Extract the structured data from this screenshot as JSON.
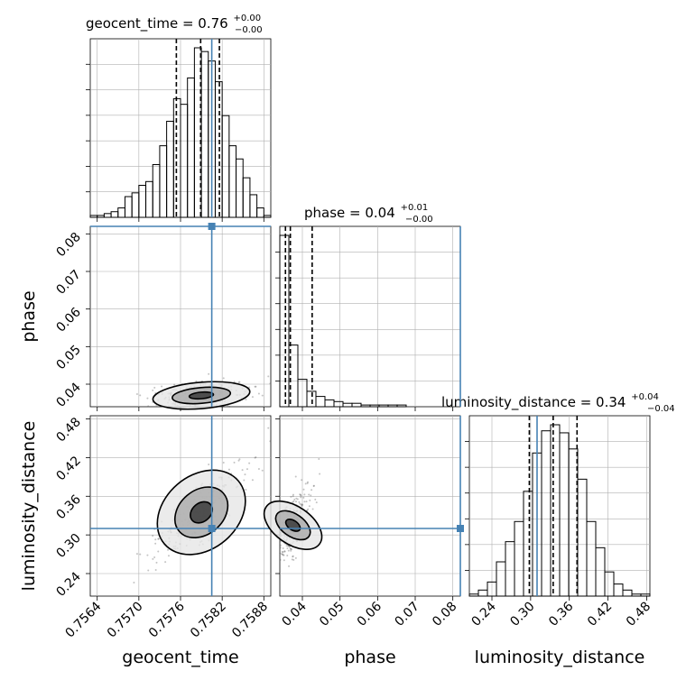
{
  "colors": {
    "truth": "#4682b4",
    "hist": "#000000",
    "grid": "#b0b0b0",
    "scatter": "#555555"
  },
  "titles": {
    "geocent_time": {
      "main": "geocent_time = 0.76",
      "sup": "+0.00",
      "sub": "−0.00"
    },
    "phase": {
      "main": "phase = 0.04",
      "sup": "+0.01",
      "sub": "−0.00"
    },
    "luminosity_distance": {
      "main": "luminosity_distance = 0.34",
      "sup": "+0.04",
      "sub": "−0.04"
    }
  },
  "chart_data": {
    "type": "corner",
    "parameters": [
      "geocent_time",
      "phase",
      "luminosity_distance"
    ],
    "axis_labels": [
      "geocent_time",
      "phase",
      "luminosity_distance"
    ],
    "truth": {
      "geocent_time": 0.75805,
      "phase": 0.082,
      "luminosity_distance": 0.31
    },
    "ranges": {
      "geocent_time": [
        0.7563,
        0.7589
      ],
      "phase": [
        0.034,
        0.082
      ],
      "luminosity_distance": [
        0.205,
        0.485
      ]
    },
    "ticks": {
      "geocent_time": [
        "0.7564",
        "0.7570",
        "0.7576",
        "0.7582",
        "0.7588"
      ],
      "phase": [
        "0.04",
        "0.05",
        "0.06",
        "0.07",
        "0.08"
      ],
      "luminosity_distance": [
        "0.24",
        "0.30",
        "0.36",
        "0.42",
        "0.48"
      ]
    },
    "quantiles": {
      "geocent_time": [
        0.75754,
        0.75789,
        0.75816
      ],
      "phase": [
        0.0355,
        0.0368,
        0.0426
      ],
      "luminosity_distance": [
        0.298,
        0.335,
        0.372
      ]
    },
    "histograms": {
      "geocent_time": {
        "edges": [
          0.7563,
          0.7564,
          0.7565,
          0.7566,
          0.7567,
          0.7568,
          0.7569,
          0.757,
          0.7571,
          0.7572,
          0.7573,
          0.7574,
          0.7575,
          0.7576,
          0.7577,
          0.7578,
          0.7579,
          0.758,
          0.7581,
          0.7582,
          0.7583,
          0.7584,
          0.7585,
          0.7586,
          0.7587,
          0.7588,
          0.7589
        ],
        "counts": [
          1,
          1,
          2,
          3,
          5,
          11,
          13,
          17,
          19,
          28,
          38,
          51,
          63,
          60,
          74,
          90,
          88,
          83,
          72,
          54,
          38,
          31,
          21,
          12,
          5,
          1
        ]
      },
      "phase": {
        "edges": [
          0.034,
          0.0364,
          0.0388,
          0.0412,
          0.0436,
          0.046,
          0.0484,
          0.0508,
          0.0532,
          0.0556,
          0.058,
          0.0604,
          0.0628,
          0.0652,
          0.0676,
          0.07,
          0.0724,
          0.0748,
          0.0772,
          0.0796,
          0.082
        ],
        "counts": [
          100,
          36,
          16,
          9,
          6,
          4,
          3,
          2,
          2,
          1,
          1,
          1,
          1,
          1,
          0,
          0,
          0,
          0,
          0,
          0
        ]
      },
      "luminosity_distance": {
        "edges": [
          0.205,
          0.219,
          0.233,
          0.247,
          0.261,
          0.275,
          0.289,
          0.303,
          0.317,
          0.331,
          0.345,
          0.359,
          0.373,
          0.387,
          0.401,
          0.415,
          0.429,
          0.443,
          0.457,
          0.471,
          0.485
        ],
        "counts": [
          1,
          3,
          7,
          17,
          27,
          37,
          52,
          71,
          82,
          85,
          81,
          73,
          58,
          37,
          24,
          12,
          6,
          3,
          1,
          1
        ]
      }
    }
  }
}
